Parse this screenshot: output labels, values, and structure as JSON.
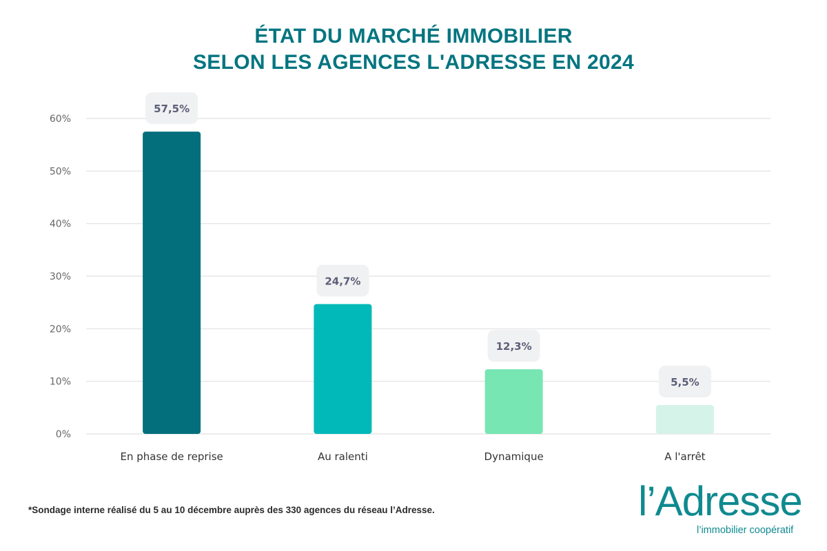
{
  "chart_data": {
    "type": "bar",
    "title": [
      "ÉTAT DU MARCHÉ IMMOBILIER",
      "SELON LES AGENCES L'ADRESSE EN 2024"
    ],
    "categories": [
      "En phase de reprise",
      "Au ralenti",
      "Dynamique",
      "A l'arrêt"
    ],
    "values": [
      57.5,
      24.7,
      12.3,
      5.5
    ],
    "data_labels": [
      "57,5%",
      "24,7%",
      "12,3%",
      "5,5%"
    ],
    "colors": [
      "#036f7c",
      "#00b9b8",
      "#77e6b3",
      "#d6f3ea"
    ],
    "ylim": [
      0,
      60
    ],
    "yticks": [
      0,
      10,
      20,
      30,
      40,
      50,
      60
    ],
    "ytick_labels": [
      "0%",
      "10%",
      "20%",
      "30%",
      "40%",
      "50%",
      "60%"
    ],
    "grid": true,
    "xlabel": "",
    "ylabel": ""
  },
  "footnote": "*Sondage interne réalisé du 5 au 10 décembre auprès des 330 agences du réseau l’Adresse.",
  "logo": {
    "name": "l’Adresse",
    "tagline": "l’immobilier coopératif",
    "color": "#0f8a8f"
  }
}
